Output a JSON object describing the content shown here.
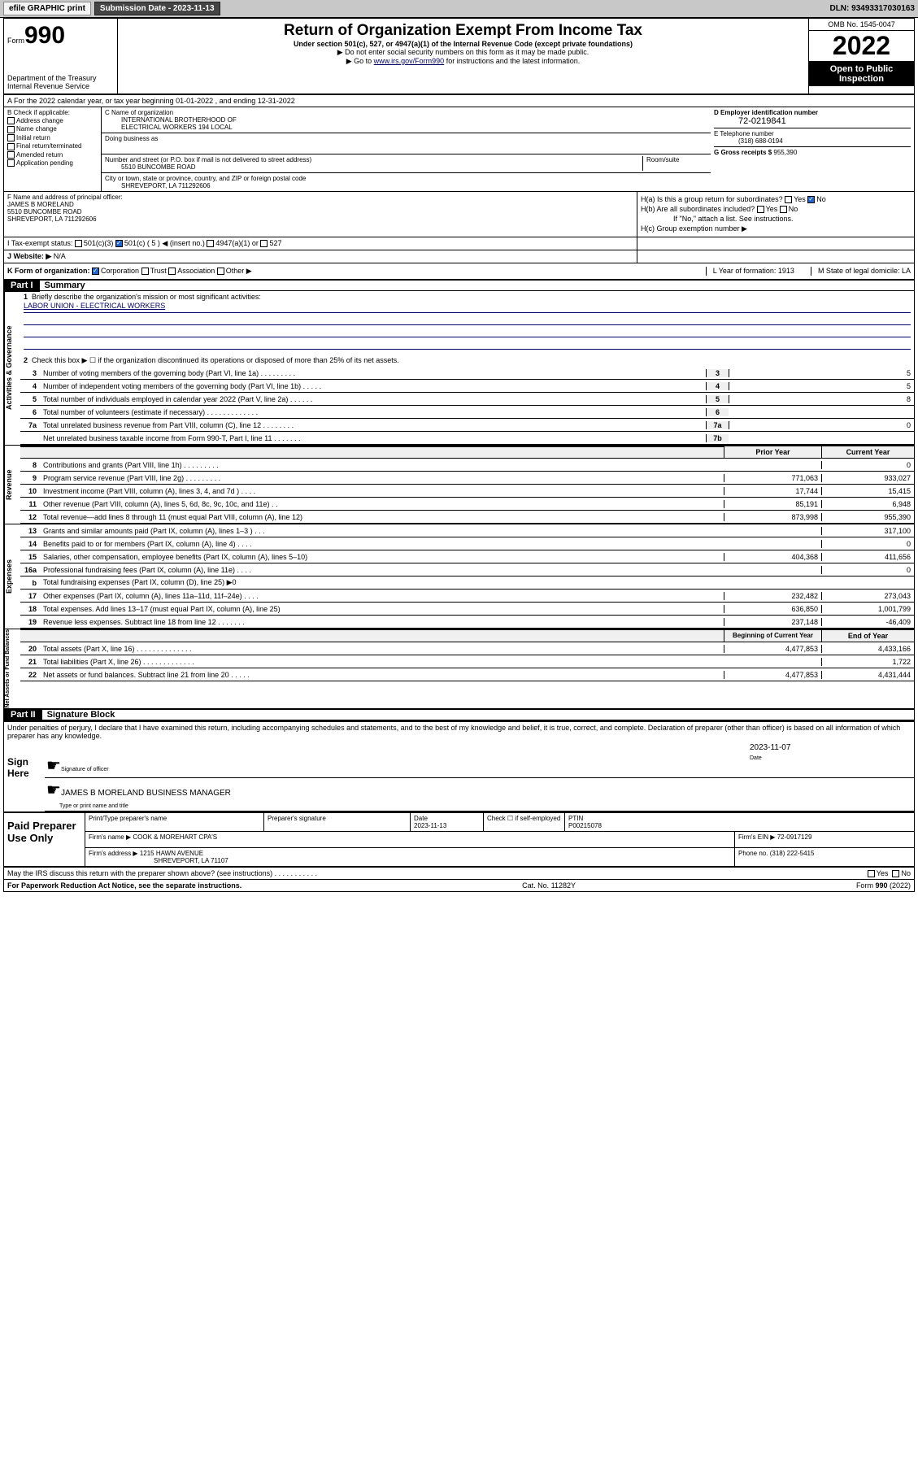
{
  "header_bar": {
    "efile": "efile GRAPHIC print",
    "submission_label": "Submission Date - 2023-11-13",
    "dln": "DLN: 93493317030163"
  },
  "top": {
    "form_label": "Form",
    "form_num": "990",
    "title": "Return of Organization Exempt From Income Tax",
    "subtitle": "Under section 501(c), 527, or 4947(a)(1) of the Internal Revenue Code (except private foundations)",
    "note1": "▶ Do not enter social security numbers on this form as it may be made public.",
    "note2_pre": "▶ Go to ",
    "note2_link": "www.irs.gov/Form990",
    "note2_post": " for instructions and the latest information.",
    "dept": "Department of the Treasury",
    "irs": "Internal Revenue Service",
    "omb": "OMB No. 1545-0047",
    "year": "2022",
    "open": "Open to Public Inspection"
  },
  "row_a": {
    "text": "A For the 2022 calendar year, or tax year beginning 01-01-2022    , and ending 12-31-2022"
  },
  "col_b": {
    "title": "B Check if applicable:",
    "items": [
      "Address change",
      "Name change",
      "Initial return",
      "Final return/terminated",
      "Amended return",
      "Application pending"
    ]
  },
  "col_c": {
    "name_label": "C Name of organization",
    "name1": "INTERNATIONAL BROTHERHOOD OF",
    "name2": "ELECTRICAL WORKERS 194 LOCAL",
    "dba_label": "Doing business as",
    "addr_label": "Number and street (or P.O. box if mail is not delivered to street address)",
    "room_label": "Room/suite",
    "addr": "5510 BUNCOMBE ROAD",
    "city_label": "City or town, state or province, country, and ZIP or foreign postal code",
    "city": "SHREVEPORT, LA   711292606"
  },
  "col_d": {
    "ein_label": "D Employer identification number",
    "ein": "72-0219841",
    "phone_label": "E Telephone number",
    "phone": "(318) 688-0194",
    "gross_label": "G Gross receipts $",
    "gross": "955,390"
  },
  "col_f": {
    "label": "F Name and address of principal officer:",
    "name": "JAMES B MORELAND",
    "addr": "5510 BUNCOMBE ROAD",
    "city": "SHREVEPORT, LA   711292606"
  },
  "col_h": {
    "ha": "H(a)  Is this a group return for subordinates?",
    "hb": "H(b)  Are all subordinates included?",
    "hb_note": "If \"No,\" attach a list. See instructions.",
    "hc": "H(c)  Group exemption number ▶"
  },
  "row_i": {
    "label": "I   Tax-exempt status:",
    "c3": "501(c)(3)",
    "c5": "501(c) ( 5 ) ◀ (insert no.)",
    "a1": "4947(a)(1) or",
    "s527": "527"
  },
  "row_j": {
    "label": "J   Website: ▶",
    "val": "N/A"
  },
  "row_k": {
    "label": "K Form of organization:",
    "corp": "Corporation",
    "trust": "Trust",
    "assoc": "Association",
    "other": "Other ▶",
    "l": "L Year of formation: 1913",
    "m": "M State of legal domicile: LA"
  },
  "part1": {
    "header": "Part I",
    "title": "Summary",
    "q1": "Briefly describe the organization's mission or most significant activities:",
    "q1_val": "LABOR UNION - ELECTRICAL WORKERS",
    "q2": "Check this box ▶ ☐  if the organization discontinued its operations or disposed of more than 25% of its net assets.",
    "side1": "Activities & Governance",
    "side2": "Revenue",
    "side3": "Expenses",
    "side4": "Net Assets or Fund Balances",
    "prior": "Prior Year",
    "current": "Current Year",
    "begin": "Beginning of Current Year",
    "end": "End of Year"
  },
  "lines_gov": [
    {
      "n": "3",
      "d": "Number of voting members of the governing body (Part VI, line 1a)   .    .    .    .    .    .    .    .    .",
      "nc": "3",
      "v": "5"
    },
    {
      "n": "4",
      "d": "Number of independent voting members of the governing body (Part VI, line 1b)   .    .    .    .    .",
      "nc": "4",
      "v": "5"
    },
    {
      "n": "5",
      "d": "Total number of individuals employed in calendar year 2022 (Part V, line 2a)   .    .    .    .    .    .",
      "nc": "5",
      "v": "8"
    },
    {
      "n": "6",
      "d": "Total number of volunteers (estimate if necessary)   .    .    .    .    .    .    .    .    .    .    .    .    .",
      "nc": "6",
      "v": ""
    },
    {
      "n": "7a",
      "d": "Total unrelated business revenue from Part VIII, column (C), line 12   .    .    .    .    .    .    .    .",
      "nc": "7a",
      "v": "0"
    },
    {
      "n": "",
      "d": "Net unrelated business taxable income from Form 990-T, Part I, line 11   .    .    .    .    .    .    .",
      "nc": "7b",
      "v": ""
    }
  ],
  "lines_rev": [
    {
      "n": "8",
      "d": "Contributions and grants (Part VIII, line 1h)   .    .    .    .    .    .    .    .    .",
      "p": "",
      "c": "0"
    },
    {
      "n": "9",
      "d": "Program service revenue (Part VIII, line 2g)   .    .    .    .    .    .    .    .    .",
      "p": "771,063",
      "c": "933,027"
    },
    {
      "n": "10",
      "d": "Investment income (Part VIII, column (A), lines 3, 4, and 7d )   .    .    .    .",
      "p": "17,744",
      "c": "15,415"
    },
    {
      "n": "11",
      "d": "Other revenue (Part VIII, column (A), lines 5, 6d, 8c, 9c, 10c, and 11e)   .    .",
      "p": "85,191",
      "c": "6,948"
    },
    {
      "n": "12",
      "d": "Total revenue—add lines 8 through 11 (must equal Part VIII, column (A), line 12)",
      "p": "873,998",
      "c": "955,390"
    }
  ],
  "lines_exp": [
    {
      "n": "13",
      "d": "Grants and similar amounts paid (Part IX, column (A), lines 1–3 )   .    .    .",
      "p": "",
      "c": "317,100"
    },
    {
      "n": "14",
      "d": "Benefits paid to or for members (Part IX, column (A), line 4)   .    .    .    .",
      "p": "",
      "c": "0"
    },
    {
      "n": "15",
      "d": "Salaries, other compensation, employee benefits (Part IX, column (A), lines 5–10)",
      "p": "404,368",
      "c": "411,656"
    },
    {
      "n": "16a",
      "d": "Professional fundraising fees (Part IX, column (A), line 11e)   .    .    .    .",
      "p": "",
      "c": "0"
    },
    {
      "n": "b",
      "d": "Total fundraising expenses (Part IX, column (D), line 25) ▶0",
      "p": "",
      "c": "",
      "grey": true
    },
    {
      "n": "17",
      "d": "Other expenses (Part IX, column (A), lines 11a–11d, 11f–24e)   .    .    .    .",
      "p": "232,482",
      "c": "273,043"
    },
    {
      "n": "18",
      "d": "Total expenses. Add lines 13–17 (must equal Part IX, column (A), line 25)",
      "p": "636,850",
      "c": "1,001,799"
    },
    {
      "n": "19",
      "d": "Revenue less expenses. Subtract line 18 from line 12   .    .    .    .    .    .    .",
      "p": "237,148",
      "c": "-46,409"
    }
  ],
  "lines_net": [
    {
      "n": "20",
      "d": "Total assets (Part X, line 16)   .    .    .    .    .    .    .    .    .    .    .    .    .    .",
      "p": "4,477,853",
      "c": "4,433,166"
    },
    {
      "n": "21",
      "d": "Total liabilities (Part X, line 26)   .    .    .    .    .    .    .    .    .    .    .    .    .",
      "p": "",
      "c": "1,722"
    },
    {
      "n": "22",
      "d": "Net assets or fund balances. Subtract line 21 from line 20   .    .    .    .    .",
      "p": "4,477,853",
      "c": "4,431,444"
    }
  ],
  "part2": {
    "header": "Part II",
    "title": "Signature Block",
    "decl": "Under penalties of perjury, I declare that I have examined this return, including accompanying schedules and statements, and to the best of my knowledge and belief, it is true, correct, and complete. Declaration of preparer (other than officer) is based on all information of which preparer has any knowledge.",
    "sign_here": "Sign Here",
    "sig_officer": "Signature of officer",
    "sig_date": "2023-11-07",
    "date_label": "Date",
    "officer_name": "JAMES B MORELAND  BUSINESS MANAGER",
    "type_name": "Type or print name and title",
    "paid": "Paid Preparer Use Only",
    "prep_name_label": "Print/Type preparer's name",
    "prep_sig_label": "Preparer's signature",
    "prep_date_label": "Date",
    "prep_date": "2023-11-13",
    "check_label": "Check ☐ if self-employed",
    "ptin_label": "PTIN",
    "ptin": "P00215078",
    "firm_name_label": "Firm's name     ▶",
    "firm_name": "COOK & MOREHART CPA'S",
    "firm_ein_label": "Firm's EIN ▶",
    "firm_ein": "72-0917129",
    "firm_addr_label": "Firm's address ▶",
    "firm_addr1": "1215 HAWN AVENUE",
    "firm_addr2": "SHREVEPORT, LA  71107",
    "phone_label": "Phone no.",
    "phone": "(318) 222-5415",
    "discuss": "May the IRS discuss this return with the preparer shown above? (see instructions)   .    .    .    .    .    .    .    .    .    .    .",
    "footer_left": "For Paperwork Reduction Act Notice, see the separate instructions.",
    "footer_mid": "Cat. No. 11282Y",
    "footer_right": "Form 990 (2022)"
  }
}
